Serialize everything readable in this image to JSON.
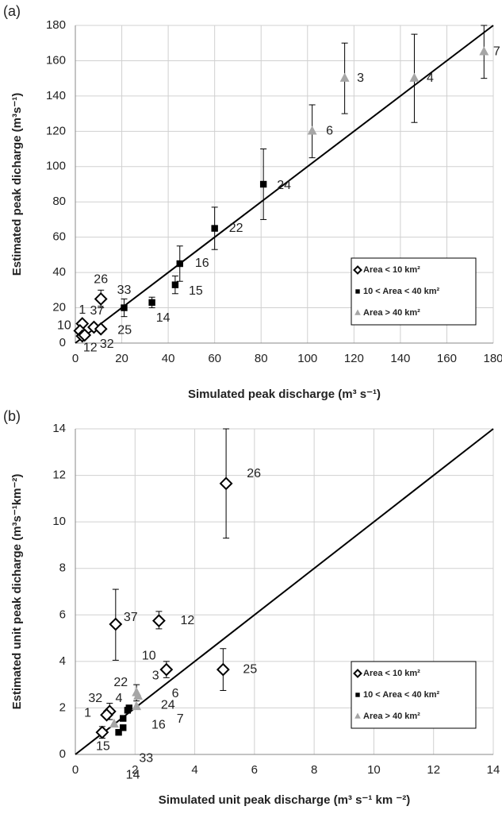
{
  "chart_data": [
    {
      "type": "scatter",
      "panel": "(a)",
      "xlabel": "Simulated peak discharge (m³ s⁻¹)",
      "ylabel": "Estimated peak dicharge (m³s⁻¹)",
      "xlim": [
        0,
        180
      ],
      "ylim": [
        0,
        180
      ],
      "xticks": [
        0,
        20,
        40,
        60,
        80,
        100,
        120,
        140,
        160,
        180
      ],
      "yticks": [
        0,
        20,
        40,
        60,
        80,
        100,
        120,
        140,
        160,
        180
      ],
      "grid": true,
      "legend": "lower right",
      "series": [
        {
          "name": "Area < 10 km²",
          "marker": "diamond",
          "color": "#000000",
          "labels": [
            "26",
            "37",
            "1",
            "25",
            "10",
            "12",
            "32"
          ],
          "x": [
            11,
            8,
            3,
            11,
            2,
            3,
            4
          ],
          "y": [
            25,
            9,
            11,
            8,
            7,
            4,
            4.5
          ],
          "y_low": [
            20,
            null,
            null,
            null,
            null,
            null,
            null
          ],
          "y_high": [
            30,
            null,
            null,
            null,
            null,
            null,
            null
          ]
        },
        {
          "name": "10 < Area < 40 km²",
          "marker": "square",
          "color": "#000000",
          "labels": [
            "33",
            "14",
            "15",
            "16",
            "22",
            "24"
          ],
          "x": [
            21,
            33,
            43,
            45,
            60,
            81
          ],
          "y": [
            20,
            23,
            33,
            45,
            65,
            90
          ],
          "y_low": [
            15,
            20,
            28,
            35,
            53,
            70
          ],
          "y_high": [
            25,
            26,
            38,
            55,
            77,
            110
          ]
        },
        {
          "name": "Area > 40 km²",
          "marker": "triangle",
          "color": "#a6a6a6",
          "labels": [
            "6",
            "3",
            "4",
            "7"
          ],
          "x": [
            102,
            116,
            146,
            176
          ],
          "y": [
            120,
            150,
            150,
            165
          ],
          "y_low": [
            105,
            130,
            125,
            150
          ],
          "y_high": [
            135,
            170,
            175,
            180
          ]
        }
      ]
    },
    {
      "type": "scatter",
      "panel": "(b)",
      "xlabel": "Simulated unit peak discharge (m³ s⁻¹ km ⁻²)",
      "ylabel": "Estimated unit peak dicharge (m³s⁻¹km⁻²)",
      "xlim": [
        0,
        14
      ],
      "ylim": [
        0,
        14
      ],
      "xticks": [
        0,
        2,
        4,
        6,
        8,
        10,
        12,
        14
      ],
      "yticks": [
        0,
        2,
        4,
        6,
        8,
        10,
        12,
        14
      ],
      "grid": true,
      "legend": "lower right",
      "series": [
        {
          "name": "Area < 10 km²",
          "marker": "diamond",
          "color": "#000000",
          "labels": [
            "26",
            "37",
            "12",
            "25",
            "10",
            "32",
            "1",
            "15"
          ],
          "x": [
            5.05,
            1.35,
            2.8,
            4.95,
            3.05,
            1.15,
            1.05,
            0.9
          ],
          "y": [
            11.65,
            5.6,
            5.75,
            3.65,
            3.65,
            1.85,
            1.7,
            0.95
          ],
          "y_low": [
            9.3,
            4.05,
            5.4,
            2.75,
            3.3,
            1.5,
            null,
            0.7
          ],
          "y_high": [
            14,
            7.1,
            6.15,
            4.55,
            4.0,
            2.2,
            null,
            1.2
          ]
        },
        {
          "name": "10 < Area < 40 km²",
          "marker": "square",
          "color": "#000000",
          "labels": [
            "14",
            "33",
            "16",
            "22",
            "24"
          ],
          "x": [
            1.45,
            1.6,
            1.75,
            1.6,
            1.8
          ],
          "y": [
            0.95,
            1.15,
            1.9,
            1.55,
            2.0
          ],
          "y_low": [
            null,
            null,
            null,
            null,
            null
          ],
          "y_high": [
            null,
            null,
            null,
            null,
            null
          ]
        },
        {
          "name": "Area > 40 km²",
          "marker": "triangle",
          "color": "#a6a6a6",
          "labels": [
            "3",
            "6",
            "7",
            "4"
          ],
          "x": [
            2.05,
            2.1,
            2.05,
            1.3
          ],
          "y": [
            2.65,
            2.5,
            2.05,
            1.3
          ],
          "y_low": [
            2.3,
            null,
            null,
            null
          ],
          "y_high": [
            3.0,
            null,
            null,
            null
          ]
        }
      ]
    }
  ]
}
